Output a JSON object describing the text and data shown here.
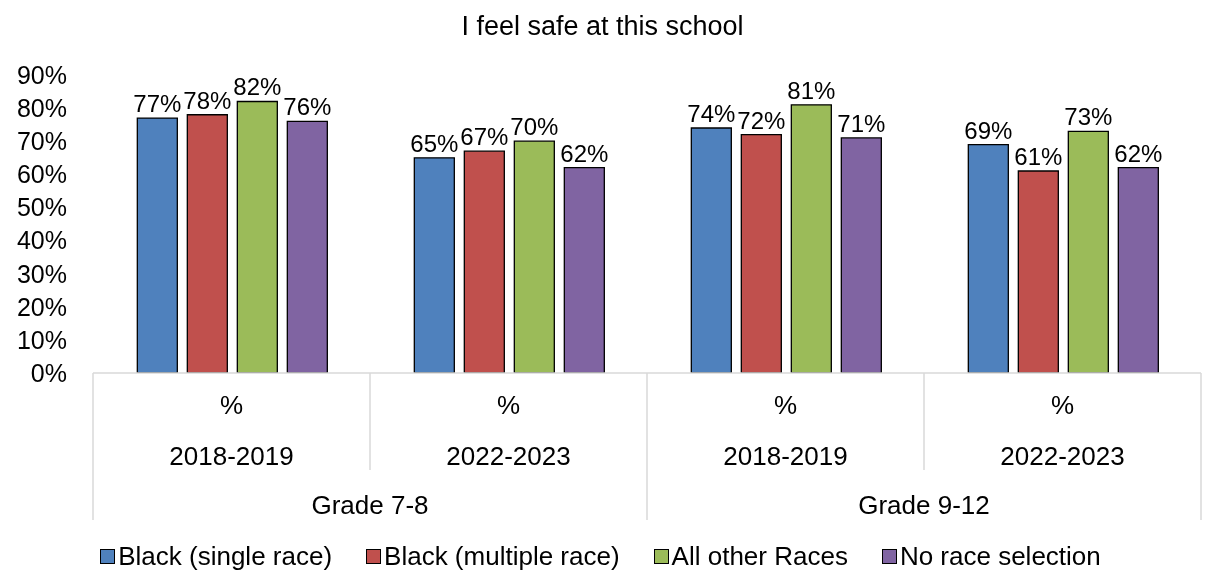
{
  "chart_data": {
    "type": "bar",
    "title": "I feel safe at this school",
    "categories": [
      "%\n2018-2019",
      "%\n2022-2023",
      "%\n2018-2019",
      "%\n2022-2023"
    ],
    "annotations": [
      "Grade 7-8",
      "Grade 9-12"
    ],
    "series": [
      {
        "name": "Black (single race)",
        "color": "#4f81bd",
        "values": [
          77,
          65,
          74,
          69
        ],
        "value_labels": [
          "77%",
          "65%",
          "74%",
          "69%"
        ]
      },
      {
        "name": "Black (multiple race)",
        "color": "#c0504d",
        "values": [
          78,
          67,
          72,
          61
        ],
        "value_labels": [
          "78%",
          "67%",
          "72%",
          "61%"
        ]
      },
      {
        "name": "All other Races",
        "color": "#9bbb59",
        "values": [
          82,
          70,
          81,
          73
        ],
        "value_labels": [
          "82%",
          "70%",
          "81%",
          "73%"
        ]
      },
      {
        "name": "No race selection",
        "color": "#8064a2",
        "values": [
          76,
          62,
          71,
          62
        ],
        "value_labels": [
          "76%",
          "62%",
          "71%",
          "62%"
        ]
      }
    ],
    "ylim": [
      0,
      90
    ],
    "yticks": [
      {
        "value": 0,
        "label": "0%"
      },
      {
        "value": 10,
        "label": "10%"
      },
      {
        "value": 20,
        "label": "20%"
      },
      {
        "value": 30,
        "label": "30%"
      },
      {
        "value": 40,
        "label": "40%"
      },
      {
        "value": 50,
        "label": "50%"
      },
      {
        "value": 60,
        "label": "60%"
      },
      {
        "value": 70,
        "label": "70%"
      },
      {
        "value": 80,
        "label": "80%"
      },
      {
        "value": 90,
        "label": "90%"
      }
    ],
    "legend": "bottom"
  }
}
